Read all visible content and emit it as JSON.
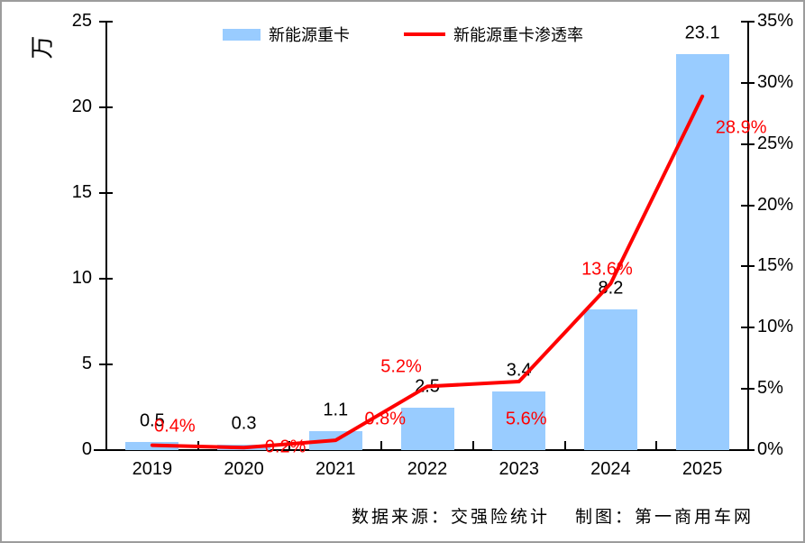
{
  "chart_data": {
    "type": "bar",
    "title": "",
    "categories": [
      "2019",
      "2020",
      "2021",
      "2022",
      "2023",
      "2024",
      "2025"
    ],
    "series": [
      {
        "name": "新能源重卡",
        "type": "bar",
        "axis": "left",
        "color": "#99CCFF",
        "values": [
          0.5,
          0.3,
          1.1,
          2.5,
          3.4,
          8.2,
          23.1
        ],
        "labels": [
          "0.5",
          "0.3",
          "1.1",
          "2.5",
          "3.4",
          "8.2",
          "23.1"
        ]
      },
      {
        "name": "新能源重卡渗透率",
        "type": "line",
        "axis": "right",
        "color": "#FF0000",
        "values": [
          0.4,
          0.2,
          0.8,
          5.2,
          5.6,
          13.6,
          28.9
        ],
        "labels": [
          "0.4%",
          "0.2%",
          "0.8%",
          "5.2%",
          "5.6%",
          "13.6%",
          "28.9%"
        ]
      }
    ],
    "left_axis": {
      "title": "万",
      "min": 0,
      "max": 25,
      "ticks": [
        "0",
        "5",
        "10",
        "15",
        "20",
        "25"
      ]
    },
    "right_axis": {
      "min": 0,
      "max": 35,
      "ticks": [
        "0%",
        "5%",
        "10%",
        "15%",
        "20%",
        "25%",
        "30%",
        "35%"
      ]
    },
    "legend_position": "top",
    "grid": false
  },
  "footer": {
    "source": "数据来源：交强险统计",
    "credit": "制图：第一商用车网"
  },
  "colors": {
    "bar": "#99CCFF",
    "line": "#FF0000",
    "axis": "#000000",
    "frame_border": "#9C9C9C",
    "label_black": "#000000",
    "label_red": "#FF0000"
  }
}
